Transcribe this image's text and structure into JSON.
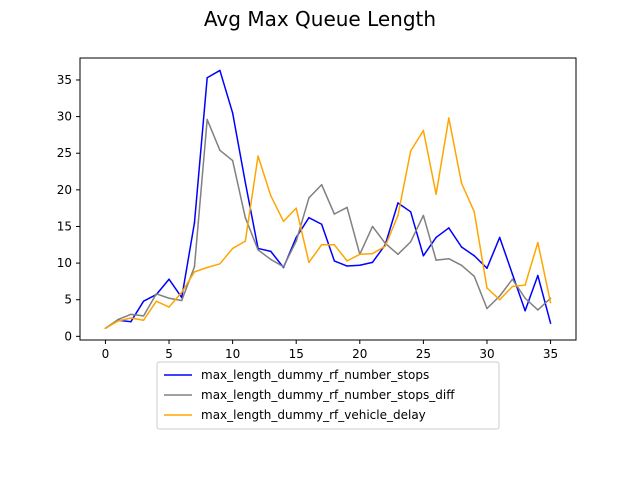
{
  "chart_data": {
    "type": "line",
    "title": "Avg Max Queue Length",
    "xlabel": "",
    "ylabel": "",
    "xlim": [
      -2,
      37
    ],
    "ylim": [
      -0.5,
      38
    ],
    "x_ticks": [
      0,
      5,
      10,
      15,
      20,
      25,
      30,
      35
    ],
    "y_ticks": [
      0,
      5,
      10,
      15,
      20,
      25,
      30,
      35
    ],
    "grid": false,
    "legend_position": "bottom-center",
    "x": [
      0,
      1,
      2,
      3,
      4,
      5,
      6,
      7,
      8,
      9,
      10,
      11,
      12,
      13,
      14,
      15,
      16,
      17,
      18,
      19,
      20,
      21,
      22,
      23,
      24,
      25,
      26,
      27,
      28,
      29,
      30,
      31,
      32,
      33,
      34,
      35
    ],
    "series": [
      {
        "name": "max_length_dummy_rf_number_stops",
        "color": "#0000ff",
        "values": [
          1.1,
          2.2,
          2.0,
          4.8,
          5.7,
          7.8,
          5.3,
          15.5,
          35.3,
          36.3,
          30.5,
          21.0,
          12.0,
          11.6,
          9.4,
          13.5,
          16.2,
          15.3,
          10.3,
          9.6,
          9.7,
          10.1,
          12.5,
          18.2,
          17.0,
          11.0,
          13.5,
          14.8,
          12.2,
          11.0,
          9.3,
          13.5,
          8.5,
          3.5,
          8.3,
          1.8
        ]
      },
      {
        "name": "max_length_dummy_rf_number_stops_diff",
        "color": "#808080",
        "values": [
          1.1,
          2.3,
          3.0,
          2.8,
          5.8,
          5.2,
          4.9,
          9.5,
          29.6,
          25.4,
          24.0,
          16.2,
          11.8,
          10.5,
          9.5,
          13.0,
          18.9,
          20.7,
          16.7,
          17.6,
          11.2,
          15.0,
          12.7,
          11.2,
          12.9,
          16.5,
          10.4,
          10.6,
          9.7,
          8.2,
          3.8,
          5.5,
          7.8,
          5.2,
          3.6,
          5.2
        ]
      },
      {
        "name": "max_length_dummy_rf_vehicle_delay",
        "color": "#ffa500",
        "values": [
          1.1,
          2.1,
          2.5,
          2.2,
          4.8,
          4.0,
          6.0,
          8.8,
          9.4,
          9.9,
          12.0,
          13.0,
          24.6,
          19.2,
          15.7,
          17.5,
          10.1,
          12.5,
          12.5,
          10.3,
          11.2,
          11.3,
          12.3,
          16.5,
          25.3,
          28.1,
          19.4,
          29.8,
          20.9,
          17.0,
          6.6,
          5.0,
          6.8,
          7.0,
          12.8,
          4.6
        ]
      }
    ]
  }
}
